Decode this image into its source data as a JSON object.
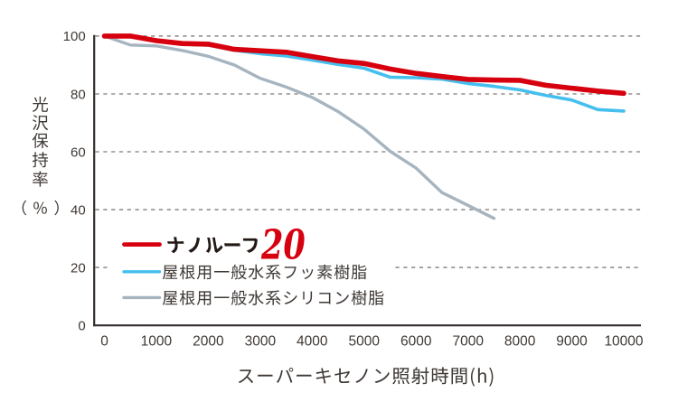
{
  "page": {
    "background": "#ffffff",
    "language": "ja"
  },
  "chart_data": {
    "type": "line",
    "title": "",
    "xlabel": "スーパーキセノン照射時間(h)",
    "ylabel": "光沢保持率（%）",
    "xlim": [
      0,
      10000
    ],
    "ylim": [
      0,
      100
    ],
    "x_ticks": [
      0,
      1000,
      2000,
      3000,
      4000,
      5000,
      6000,
      7000,
      8000,
      9000,
      10000
    ],
    "y_ticks": [
      0,
      20,
      40,
      60,
      80,
      100
    ],
    "grid": "horizontal dashed",
    "grid_color": "#959090",
    "axis_color": "#332d2b",
    "legend_position": "inside lower-left",
    "x": [
      0,
      500,
      1000,
      1500,
      2000,
      2500,
      3000,
      3500,
      4000,
      4500,
      5000,
      5500,
      6000,
      6500,
      7000,
      7500,
      8000,
      8500,
      9000,
      9500,
      10000
    ],
    "series": [
      {
        "name": "ナノルーフ20",
        "color": "#d7000f",
        "line_width": 5.6,
        "values": [
          100,
          100,
          98.4,
          97.4,
          97.2,
          95.4,
          94.9,
          94.4,
          92.9,
          91.4,
          90.5,
          88.6,
          87.1,
          86,
          85,
          84.8,
          84.7,
          83,
          82,
          81,
          80.2
        ]
      },
      {
        "name": "屋根用一般水系フッ素樹脂",
        "color": "#45bfee",
        "line_width": 3.6,
        "values": [
          100,
          99.8,
          98.2,
          97.2,
          96.9,
          95.1,
          93.9,
          93.1,
          91.7,
          90.2,
          88.9,
          85.8,
          85.6,
          85.1,
          83.6,
          82.6,
          81.4,
          79.5,
          77.9,
          74.6,
          74.1
        ]
      },
      {
        "name": "屋根用一般水系シリコン樹脂",
        "color": "#a5b4bf",
        "line_width": 3.4,
        "values": [
          100,
          96.9,
          96.6,
          95,
          93,
          90,
          85.4,
          82.4,
          78.8,
          73.9,
          67.8,
          60.2,
          54.4,
          45.9,
          41.5,
          37,
          null,
          null,
          null,
          null,
          null
        ]
      }
    ]
  },
  "legend": {
    "brand_text": "ナノルーフ",
    "brand_number": "20",
    "items": [
      {
        "label": "ナノルーフ20",
        "color": "#d7000f"
      },
      {
        "label": "屋根用一般水系フッ素樹脂",
        "color": "#45bfee"
      },
      {
        "label": "屋根用一般水系シリコン樹脂",
        "color": "#a5b4bf"
      }
    ]
  },
  "axes": {
    "y_title_chars": "光沢保持率",
    "y_title_unit": "（%）",
    "x_title": "スーパーキセノン照射時間(h)",
    "text_color": "#3e3835"
  }
}
